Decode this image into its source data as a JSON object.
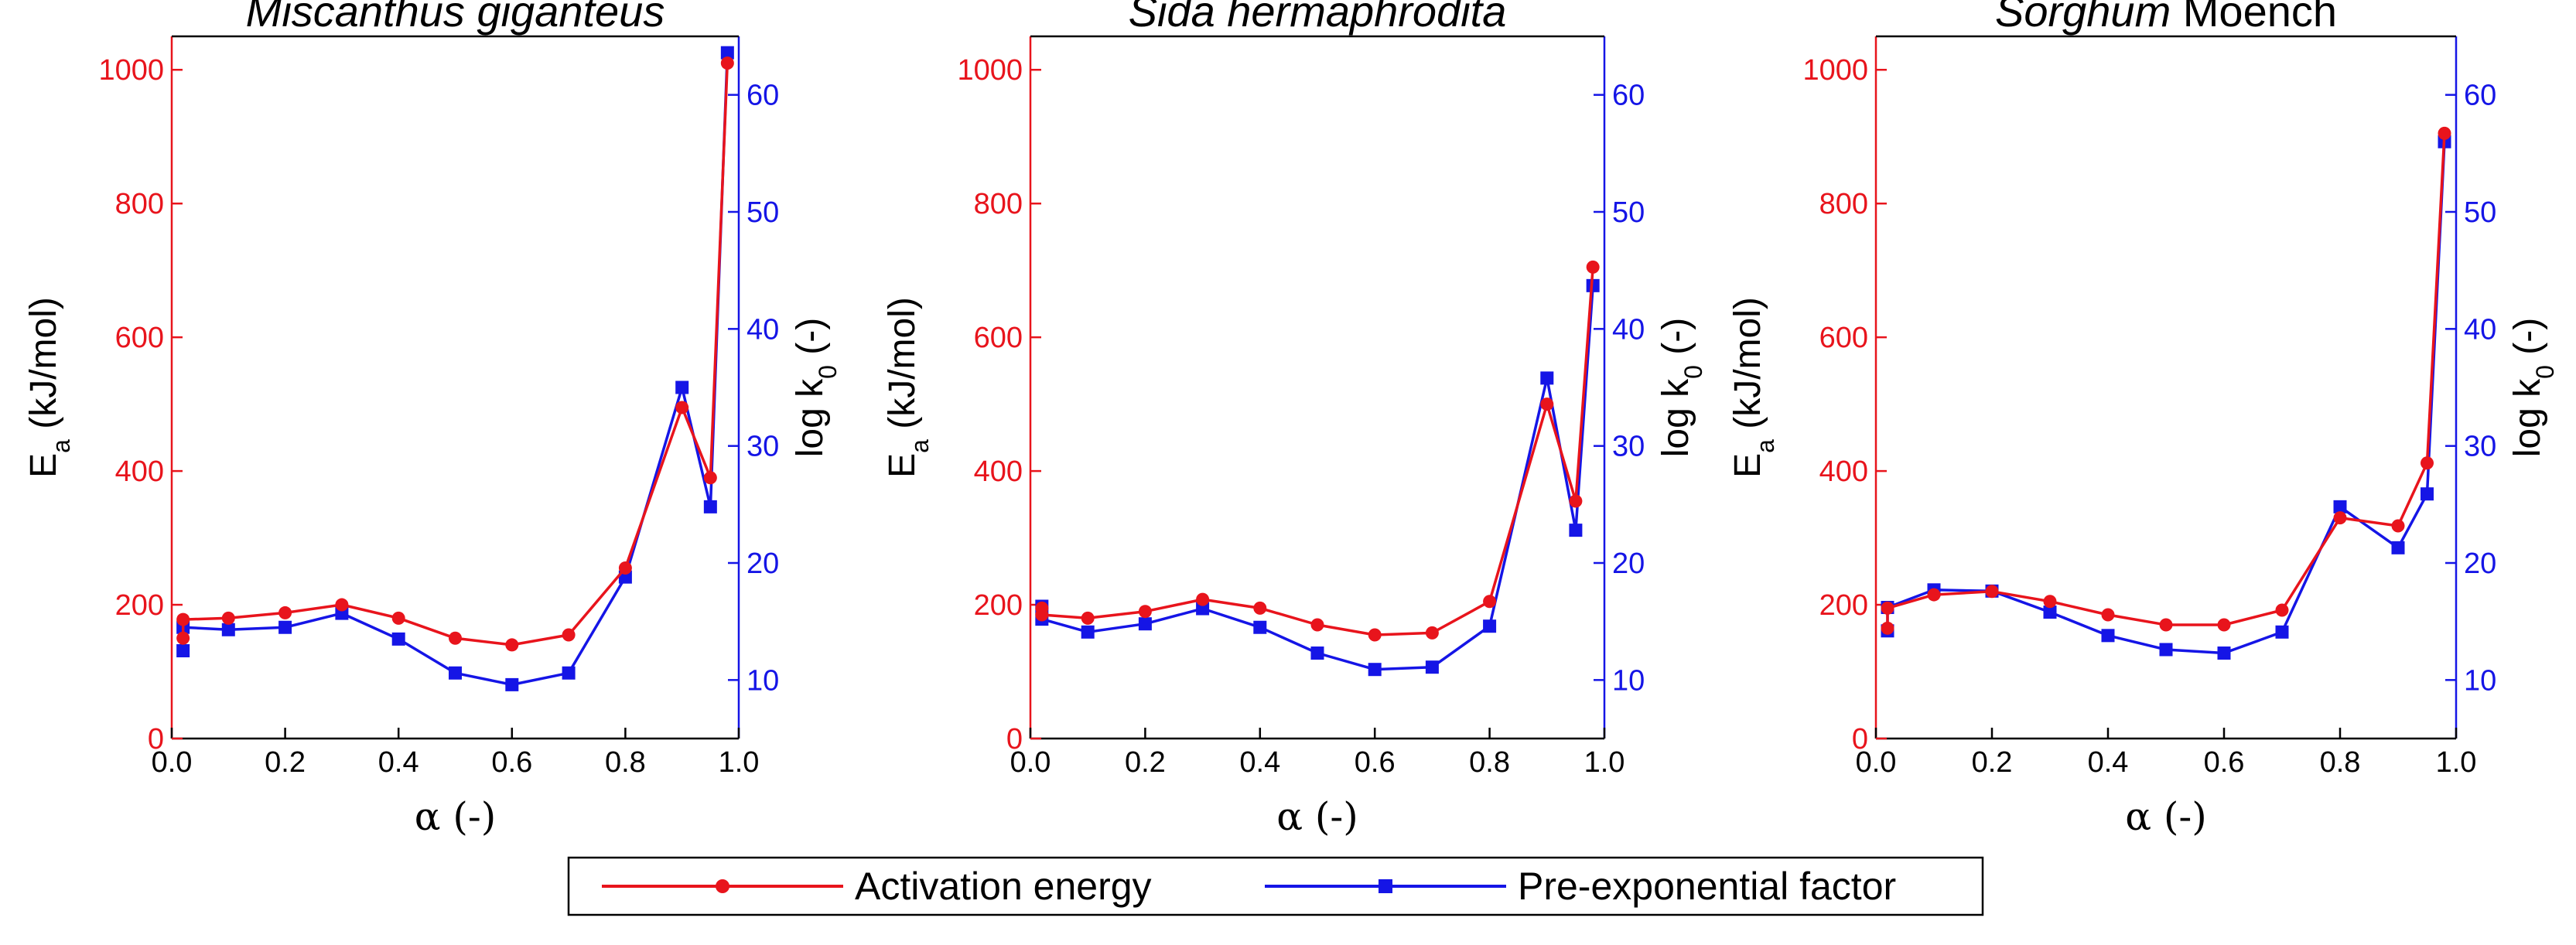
{
  "colors": {
    "activation": "#e8141c",
    "preexp": "#1515e6",
    "axis": "#000000"
  },
  "legend": {
    "activation_label": "Activation energy",
    "preexp_label": "Pre-exponential factor"
  },
  "chart_data": [
    {
      "type": "line",
      "title": "Miscanthus giganteus",
      "title_upright_suffix": "",
      "xlabel": "α (-)",
      "ylabel_left": "E",
      "ylabel_left_sub": "a",
      "ylabel_left_units": " (kJ/mol)",
      "ylabel_right": "log k",
      "ylabel_right_sub": "0",
      "ylabel_right_units": " (-)",
      "xlim": [
        0.0,
        1.0
      ],
      "ylim_left": [
        0,
        1050
      ],
      "ylim_right": [
        5,
        65
      ],
      "xticks": [
        "0.0",
        "0.2",
        "0.4",
        "0.6",
        "0.8",
        "1.0"
      ],
      "yticks_left": [
        "0",
        "200",
        "400",
        "600",
        "800",
        "1000"
      ],
      "yticks_right": [
        "10",
        "20",
        "30",
        "40",
        "50",
        "60"
      ],
      "series": [
        {
          "name": "Activation energy",
          "axis": "left",
          "x": [
            0.02,
            0.02,
            0.1,
            0.2,
            0.3,
            0.4,
            0.5,
            0.6,
            0.7,
            0.8,
            0.9,
            0.95,
            0.98
          ],
          "y": [
            150,
            178,
            180,
            188,
            200,
            180,
            150,
            140,
            155,
            255,
            495,
            390,
            1010
          ]
        },
        {
          "name": "Pre-exponential factor",
          "axis": "right",
          "x": [
            0.02,
            0.02,
            0.1,
            0.2,
            0.3,
            0.4,
            0.5,
            0.6,
            0.7,
            0.8,
            0.9,
            0.95,
            0.98
          ],
          "y": [
            12.5,
            14.5,
            14.3,
            14.5,
            15.7,
            13.5,
            10.6,
            9.6,
            10.6,
            18.8,
            35,
            24.8,
            63.6
          ]
        }
      ]
    },
    {
      "type": "line",
      "title": "Sida hermaphrodita",
      "title_upright_suffix": "",
      "xlabel": "α (-)",
      "ylabel_left": "E",
      "ylabel_left_sub": "a",
      "ylabel_left_units": " (kJ/mol)",
      "ylabel_right": "log k",
      "ylabel_right_sub": "0",
      "ylabel_right_units": " (-)",
      "xlim": [
        0.0,
        1.0
      ],
      "ylim_left": [
        0,
        1050
      ],
      "ylim_right": [
        5,
        65
      ],
      "xticks": [
        "0.0",
        "0.2",
        "0.4",
        "0.6",
        "0.8",
        "1.0"
      ],
      "yticks_left": [
        "0",
        "200",
        "400",
        "600",
        "800",
        "1000"
      ],
      "yticks_right": [
        "10",
        "20",
        "30",
        "40",
        "50",
        "60"
      ],
      "series": [
        {
          "name": "Activation energy",
          "axis": "left",
          "x": [
            0.02,
            0.02,
            0.1,
            0.2,
            0.3,
            0.4,
            0.5,
            0.6,
            0.7,
            0.8,
            0.9,
            0.95,
            0.98
          ],
          "y": [
            195,
            185,
            180,
            190,
            208,
            195,
            170,
            155,
            158,
            205,
            500,
            355,
            705
          ]
        },
        {
          "name": "Pre-exponential factor",
          "axis": "right",
          "x": [
            0.02,
            0.02,
            0.1,
            0.2,
            0.3,
            0.4,
            0.5,
            0.6,
            0.7,
            0.8,
            0.9,
            0.95,
            0.98
          ],
          "y": [
            16.3,
            15.2,
            14.1,
            14.8,
            16.1,
            14.5,
            12.3,
            10.9,
            11.1,
            14.6,
            35.8,
            22.8,
            43.7
          ]
        }
      ]
    },
    {
      "type": "line",
      "title": "Sorghum",
      "title_upright_suffix": " Moench",
      "xlabel": "α (-)",
      "ylabel_left": "E",
      "ylabel_left_sub": "a",
      "ylabel_left_units": " (kJ/mol)",
      "ylabel_right": "log k",
      "ylabel_right_sub": "0",
      "ylabel_right_units": " (-)",
      "xlim": [
        0.0,
        1.0
      ],
      "ylim_left": [
        0,
        1050
      ],
      "ylim_right": [
        5,
        65
      ],
      "xticks": [
        "0.0",
        "0.2",
        "0.4",
        "0.6",
        "0.8",
        "1.0"
      ],
      "yticks_left": [
        "0",
        "200",
        "400",
        "600",
        "800",
        "1000"
      ],
      "yticks_right": [
        "10",
        "20",
        "30",
        "40",
        "50",
        "60"
      ],
      "series": [
        {
          "name": "Activation energy",
          "axis": "left",
          "x": [
            0.02,
            0.02,
            0.1,
            0.2,
            0.3,
            0.4,
            0.5,
            0.6,
            0.7,
            0.8,
            0.9,
            0.95,
            0.98
          ],
          "y": [
            165,
            195,
            215,
            220,
            205,
            185,
            170,
            170,
            192,
            330,
            318,
            412,
            905
          ]
        },
        {
          "name": "Pre-exponential factor",
          "axis": "right",
          "x": [
            0.02,
            0.02,
            0.1,
            0.2,
            0.3,
            0.4,
            0.5,
            0.6,
            0.7,
            0.8,
            0.9,
            0.95,
            0.98
          ],
          "y": [
            14.2,
            16.2,
            17.7,
            17.6,
            15.8,
            13.8,
            12.6,
            12.3,
            14.1,
            24.8,
            21.3,
            25.9,
            56
          ]
        }
      ]
    }
  ]
}
